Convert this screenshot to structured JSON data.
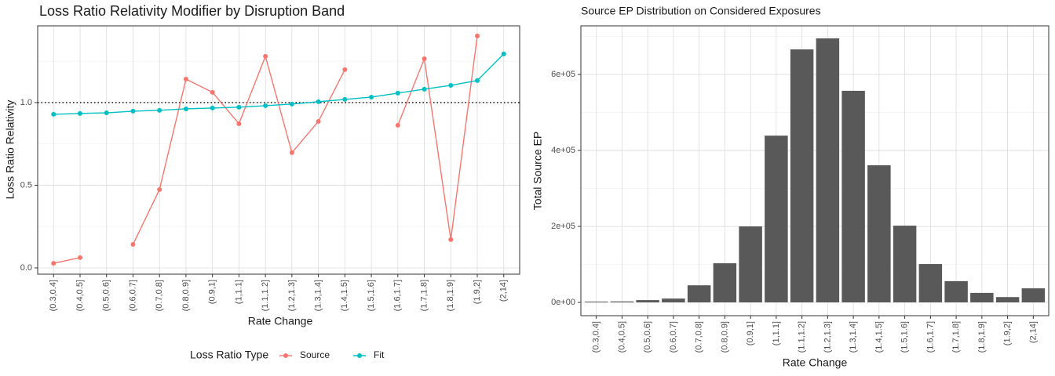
{
  "chart_data": [
    {
      "type": "line",
      "title": "Loss Ratio Relativity Modifier by Disruption Band",
      "x_label": "Rate Change",
      "y_label": "Loss Ratio Relativity",
      "categories": [
        "(0.3,0.4]",
        "(0.4,0.5]",
        "(0.5,0.6]",
        "(0.6,0.7]",
        "(0.7,0.8]",
        "(0.8,0.9]",
        "(0.9,1]",
        "(1,1.1]",
        "(1.1,1.2]",
        "(1.2,1.3]",
        "(1.3,1.4]",
        "(1.4,1.5]",
        "(1.5,1.6]",
        "(1.6,1.7]",
        "(1.7,1.8]",
        "(1.8,1.9]",
        "(1.9,2]",
        "(2,14]"
      ],
      "series": [
        {
          "name": "Source",
          "color": "#F8766D",
          "values": [
            0.028,
            0.062,
            null,
            0.142,
            0.474,
            1.142,
            1.062,
            0.872,
            1.28,
            0.697,
            0.886,
            1.199,
            null,
            0.863,
            1.265,
            0.171,
            1.403,
            null
          ]
        },
        {
          "name": "Fit",
          "color": "#00BFC4",
          "values": [
            0.929,
            0.934,
            0.938,
            0.948,
            0.953,
            0.962,
            0.967,
            0.972,
            0.981,
            0.991,
            1.005,
            1.019,
            1.033,
            1.057,
            1.081,
            1.104,
            1.133,
            1.294
          ]
        }
      ],
      "ylim": [
        -0.038,
        1.464
      ],
      "yticks": [
        {
          "value": 0,
          "label": "0.0"
        },
        {
          "value": 0.5,
          "label": "0.5"
        },
        {
          "value": 1,
          "label": "1.0"
        }
      ],
      "hline": 1,
      "grid": true,
      "legend": "bottom",
      "legend_title": "Loss Ratio Type"
    },
    {
      "type": "bar",
      "title": "Source EP Distribution on Considered Exposures",
      "x_label": "Rate Change",
      "y_label": "Total Source EP",
      "categories": [
        "(0.3,0.4]",
        "(0.4,0.5]",
        "(0.5,0.6]",
        "(0.6,0.7]",
        "(0.7,0.8]",
        "(0.8,0.9]",
        "(0.9,1]",
        "(1,1.1]",
        "(1.1,1.2]",
        "(1.2,1.3]",
        "(1.3,1.4]",
        "(1.4,1.5]",
        "(1.5,1.6]",
        "(1.6,1.7]",
        "(1.7,1.8]",
        "(1.8,1.9]",
        "(1.9,2]",
        "(2,14]"
      ],
      "values": [
        2000,
        2500,
        6000,
        10000,
        45000,
        103000,
        200000,
        439000,
        666000,
        695000,
        557000,
        361000,
        202000,
        101000,
        56000,
        25000,
        14000,
        37000
      ],
      "color": "#595959",
      "ylim": [
        -35000,
        728000
      ],
      "yticks": [
        {
          "value": 0,
          "label": "0e+00"
        },
        {
          "value": 200000,
          "label": "2e+05"
        },
        {
          "value": 400000,
          "label": "4e+05"
        },
        {
          "value": 600000,
          "label": "6e+05"
        }
      ],
      "grid": true
    }
  ]
}
